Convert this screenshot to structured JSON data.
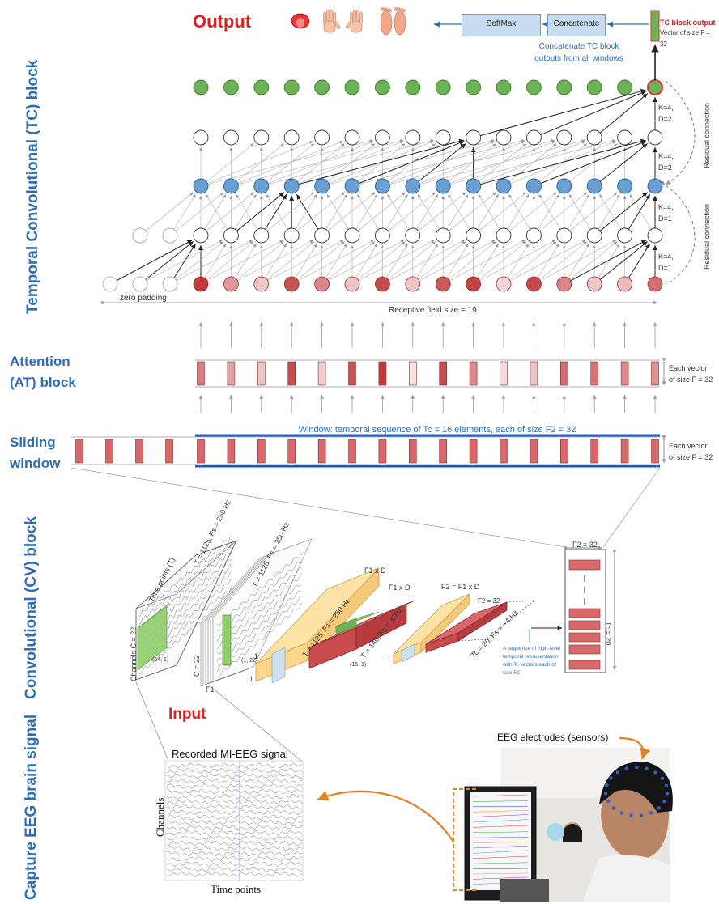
{
  "labels": {
    "output_title": "Output",
    "input_title": "Input",
    "tc_block": "Temporal Convolutional (TC) block",
    "at_block_line1": "Attention",
    "at_block_line2": "(AT) block",
    "sliding_line1": "Sliding",
    "sliding_line2": "window",
    "cv_block": "Convolutional (CV) block",
    "capture": "Capture EEG brain signal"
  },
  "top": {
    "softmax": "SoftMax",
    "concatenate": "Concatenate",
    "concat_note_line1": "Concatenate TC block",
    "concat_note_line2": "outputs from all windows",
    "tc_output": "TC block output",
    "tc_output_size": "Vector of size F = 32"
  },
  "tcn": {
    "k4d2_a": "K=4,",
    "k4d2_b": "D=2",
    "k4d2c_a": "K=4,",
    "k4d2c_b": "D=2",
    "k4d1_a": "K=4,",
    "k4d1_b": "D=1",
    "k4d1c_a": "K=4,",
    "k4d1c_b": "D=1",
    "residual1": "Residual connection",
    "residual2": "Residual connection",
    "zero_padding": "zero padding",
    "receptive_field": "Receptive field size = 19",
    "input_shades": [
      0.85,
      0.45,
      0.18,
      0.85,
      0.18,
      0.85,
      0.95,
      0.08,
      0.85,
      0.5,
      0.18,
      0.3,
      0.7,
      0.55,
      0.4
    ]
  },
  "at": {
    "size_line1": "Each vector",
    "size_line2": "of size F = 32",
    "shades": [
      0.7,
      0.45,
      0.2,
      0.9,
      0.2,
      0.85,
      1.0,
      0.05,
      0.9,
      0.55,
      0.1,
      0.25,
      0.7,
      0.65,
      0.6
    ]
  },
  "sw": {
    "window_text": "Window: temporal sequence of Tc = 16 elements, each of size F2 = 32",
    "size_line1": "Each vector",
    "size_line2": "of size F = 32"
  },
  "cv": {
    "t1": "T = 1125,  Fs = 250 Hz",
    "t2": "T = 1125,  Fs = 250 Hz",
    "timepoints": "Time points (T)",
    "channels": "Channels C = 22",
    "c22": "C = 22",
    "f1": "F1",
    "k64": "(64, 1)",
    "k122": "(1, 22)",
    "f1xd_a": "F1 x D",
    "f1xd_b": "F1 x D",
    "t3": "T = 1125,  Fs = 250 Hz",
    "t4": "T = 140,  Fs = 32Hz",
    "k16": "(16, 1)",
    "f2": "F2 = F1 x D",
    "f2_32": "F2 = 32",
    "t5": "Tc = 20,  Fs = ~4 Hz",
    "one_a": "1",
    "one_b": "1",
    "one_c": "1",
    "seq_note": [
      "A sequence of high-level",
      "temporal representation",
      "with Tc vectors each of",
      "size F2"
    ],
    "f2_top": "F2 = 32",
    "tc20": "Tc = 20"
  },
  "capture": {
    "recorded": "Recorded MI-EEG signal",
    "channels": "Channels",
    "timepoints": "Time points",
    "electrodes": "EEG electrodes (sensors)"
  },
  "colors": {
    "accent_blue": "#2e6db4",
    "title_red": "#e02020",
    "node_green": "#6cb356",
    "node_blue": "#6a9fd4",
    "node_red": "#c0393b",
    "orange": "#e87f1f"
  }
}
